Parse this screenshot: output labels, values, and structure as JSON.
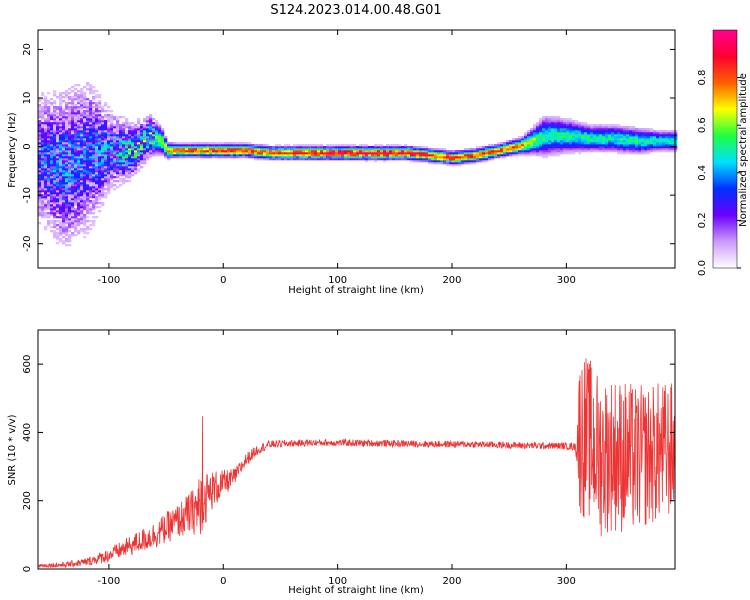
{
  "title": "S124.2023.014.00.48.G01",
  "chart_data": [
    {
      "type": "heatmap",
      "xlabel": "Height of straight line (km)",
      "ylabel": "Frequency (Hz)",
      "xlim": [
        -162,
        395
      ],
      "ylim": [
        -25,
        24
      ],
      "xticks": [
        -100,
        0,
        100,
        200,
        300
      ],
      "yticks": [
        -20,
        -10,
        0,
        10,
        20
      ],
      "colorbar": {
        "label": "Normalized spectral amplitude",
        "range": [
          0,
          1
        ],
        "ticks": [
          0.0,
          0.2,
          0.4,
          0.6,
          0.8
        ],
        "colors": [
          "#ffffff",
          "#cc99ff",
          "#6a00ff",
          "#0030ff",
          "#00e0ff",
          "#20ff40",
          "#ffff00",
          "#ff6000",
          "#ff0030",
          "#ff0090"
        ]
      },
      "ridge": {
        "x": [
          -160,
          -140,
          -120,
          -100,
          -80,
          -65,
          -55,
          -50,
          -40,
          -20,
          0,
          20,
          40,
          60,
          80,
          100,
          120,
          140,
          160,
          180,
          200,
          220,
          240,
          260,
          270,
          280,
          300,
          320,
          340,
          360,
          380,
          395
        ],
        "freq": [
          -3,
          -5,
          -2,
          -1,
          -1,
          2,
          1,
          -1,
          -1,
          -1,
          -1,
          -1,
          -1.5,
          -1.5,
          -1.5,
          -1.5,
          -1.5,
          -1.5,
          -1.5,
          -2,
          -2.5,
          -2,
          -1,
          0,
          1,
          2,
          2,
          1.5,
          1.5,
          1,
          1,
          1
        ],
        "amplitude": [
          0.3,
          0.35,
          0.3,
          0.35,
          0.45,
          0.5,
          0.6,
          0.75,
          0.8,
          0.85,
          0.85,
          0.85,
          0.8,
          0.85,
          0.9,
          0.9,
          0.92,
          0.92,
          0.9,
          0.85,
          0.82,
          0.85,
          0.8,
          0.75,
          0.6,
          0.5,
          0.5,
          0.5,
          0.5,
          0.5,
          0.5,
          0.5
        ],
        "spread": [
          10,
          12,
          12,
          6,
          4,
          3,
          2,
          1.2,
          1,
          1,
          1,
          1,
          1,
          1,
          1,
          1,
          1,
          1,
          1,
          1,
          1,
          1,
          1,
          1.2,
          2,
          3,
          2.5,
          2,
          2,
          2,
          1.5,
          1.5
        ]
      }
    },
    {
      "type": "line",
      "xlabel": "Height of straight line (km)",
      "ylabel": "SNR (10 * v/v)",
      "xlim": [
        -162,
        395
      ],
      "ylim": [
        0,
        700
      ],
      "xticks": [
        -100,
        0,
        100,
        200,
        300
      ],
      "yticks": [
        0,
        200,
        400,
        600
      ],
      "color": "#ee3333",
      "series": [
        {
          "x": [
            -162,
            -140,
            -120,
            -100,
            -80,
            -60,
            -40,
            -25,
            -20,
            -10,
            0,
            10,
            20,
            30,
            40,
            60,
            80,
            100,
            140,
            180,
            220,
            260,
            300,
            308,
            312,
            320,
            330,
            340,
            350,
            360,
            370,
            380,
            395
          ],
          "y": [
            10,
            12,
            20,
            40,
            70,
            100,
            140,
            170,
            190,
            230,
            250,
            270,
            320,
            350,
            365,
            368,
            370,
            370,
            368,
            366,
            365,
            362,
            360,
            358,
            400,
            380,
            330,
            340,
            330,
            320,
            330,
            340,
            350
          ],
          "noise": [
            5,
            8,
            12,
            20,
            30,
            40,
            50,
            70,
            90,
            60,
            40,
            25,
            20,
            15,
            12,
            10,
            10,
            10,
            10,
            10,
            10,
            10,
            10,
            12,
            250,
            240,
            240,
            230,
            230,
            220,
            210,
            210,
            200
          ]
        }
      ],
      "peak_labels": []
    }
  ]
}
